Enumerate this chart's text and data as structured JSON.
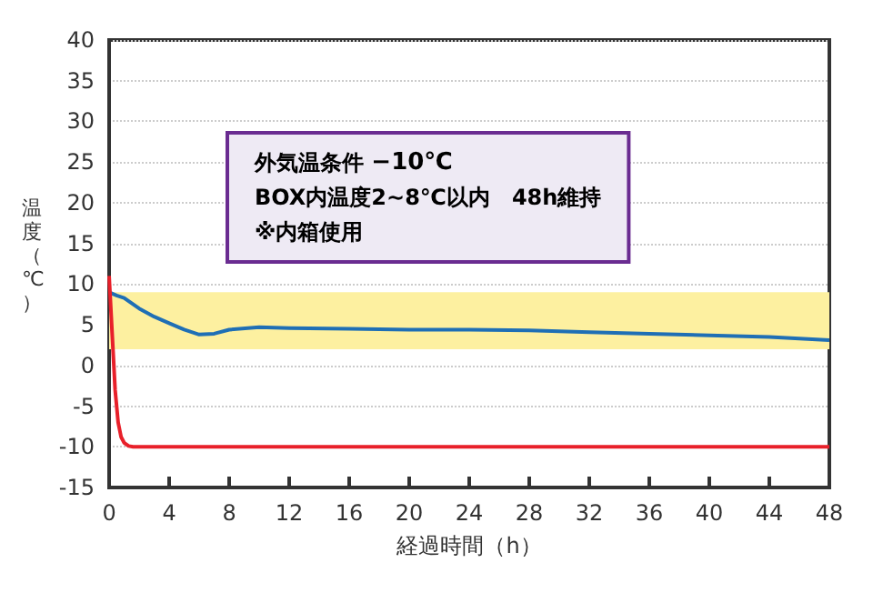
{
  "chart_data": {
    "type": "line",
    "xlabel": "経過時間（h）",
    "ylabel": "温度（℃）",
    "xlim": [
      0,
      48
    ],
    "xticks": [
      0,
      4,
      8,
      12,
      16,
      20,
      24,
      28,
      32,
      36,
      40,
      44,
      48
    ],
    "ylim": [
      -15,
      40
    ],
    "yticks": [
      -15,
      -10,
      -5,
      0,
      5,
      10,
      15,
      20,
      25,
      30,
      35,
      40
    ],
    "grid": "y",
    "marker": "none",
    "line_style": "solid",
    "series": [
      {
        "color": "#1f6fb5",
        "x": [
          0,
          0.5,
          1,
          2,
          3,
          4,
          5,
          6,
          7,
          8,
          10,
          12,
          16,
          20,
          24,
          28,
          32,
          36,
          40,
          44,
          46,
          48
        ],
        "values": [
          9,
          8.6,
          8.3,
          7,
          6,
          5.2,
          4.4,
          3.8,
          3.9,
          4.4,
          4.7,
          4.6,
          4.5,
          4.4,
          4.4,
          4.3,
          4.1,
          3.9,
          3.7,
          3.5,
          3.3,
          3.1
        ]
      },
      {
        "color": "#e8202a",
        "x": [
          0,
          0.2,
          0.4,
          0.6,
          0.8,
          1,
          1.3,
          1.6,
          2,
          10,
          20,
          30,
          40,
          48
        ],
        "values": [
          11,
          4,
          -3,
          -7,
          -8.8,
          -9.5,
          -9.9,
          -10,
          -10,
          -10,
          -10,
          -10,
          -10,
          -10
        ]
      }
    ],
    "bands": [
      {
        "axis": "y",
        "from": 2,
        "to": 9,
        "color": "#fdf0a0"
      }
    ],
    "annotations": [
      "外気温条件 −10℃",
      "BOX内温度2~8℃以内　48h維持",
      "※内箱使用"
    ]
  }
}
